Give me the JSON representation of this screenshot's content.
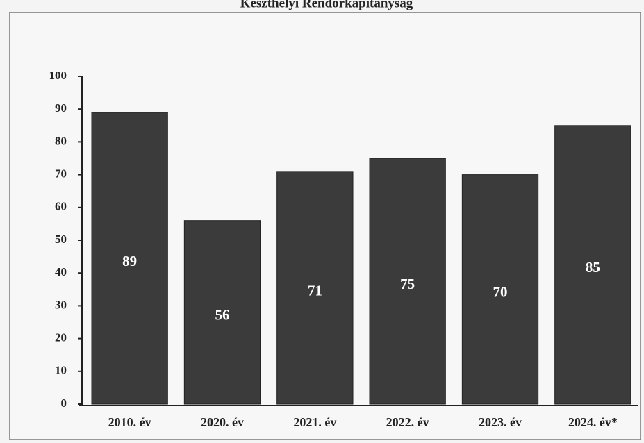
{
  "chart_data": {
    "type": "bar",
    "title": "Keszthelyi Rendőrkapitányság",
    "categories": [
      "2010. év",
      "2020. év",
      "2021. év",
      "2022. év",
      "2023. év",
      "2024. év*"
    ],
    "values": [
      89,
      56,
      71,
      75,
      70,
      85
    ],
    "color": "#3b3b3b",
    "ylim": [
      0,
      100
    ],
    "yticks": [
      0,
      10,
      20,
      30,
      40,
      50,
      60,
      70,
      80,
      90,
      100
    ]
  }
}
